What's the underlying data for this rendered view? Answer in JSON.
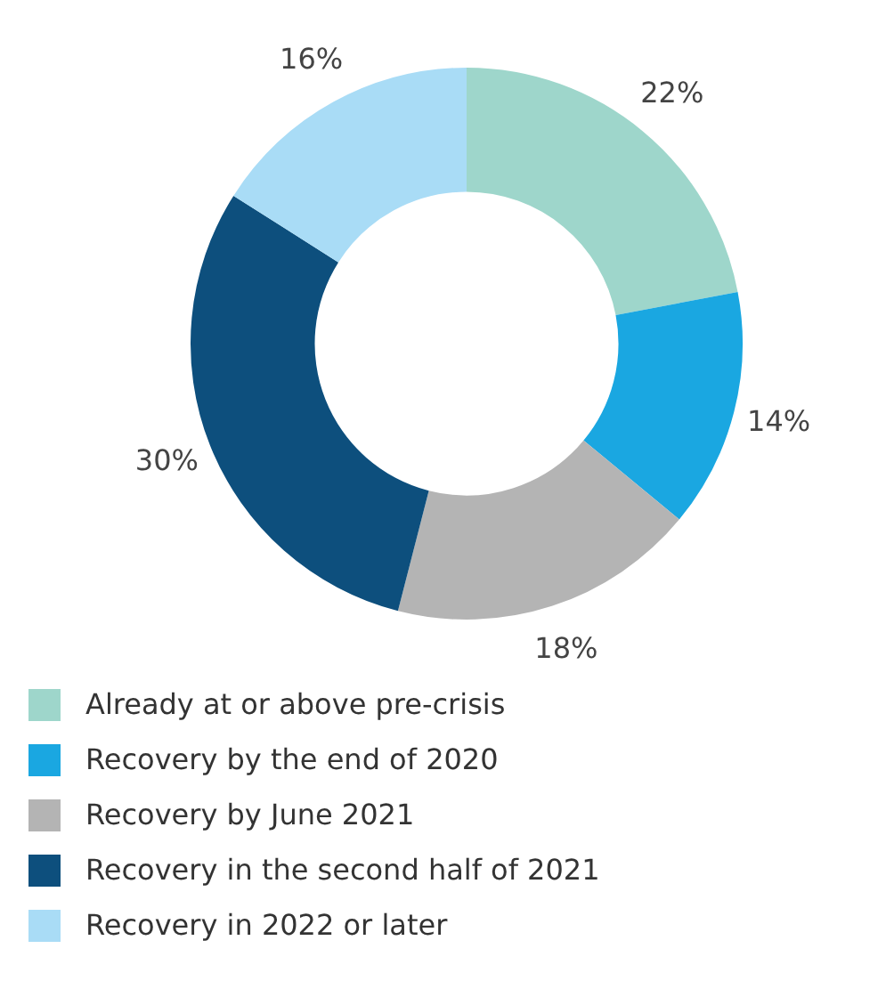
{
  "chart_data": {
    "type": "donut",
    "categories": [
      "Already at or above pre-crisis",
      "Recovery by the end of 2020",
      "Recovery by June 2021",
      "Recovery in the second half of 2021",
      "Recovery in 2022 or later"
    ],
    "values": [
      22,
      14,
      18,
      30,
      16
    ],
    "value_labels": [
      "22%",
      "14%",
      "18%",
      "30%",
      "16%"
    ],
    "colors": [
      "#9ed6cb",
      "#1aa7e1",
      "#b4b4b4",
      "#0d4f7d",
      "#a9dcf6"
    ],
    "legend": "bottom left"
  }
}
